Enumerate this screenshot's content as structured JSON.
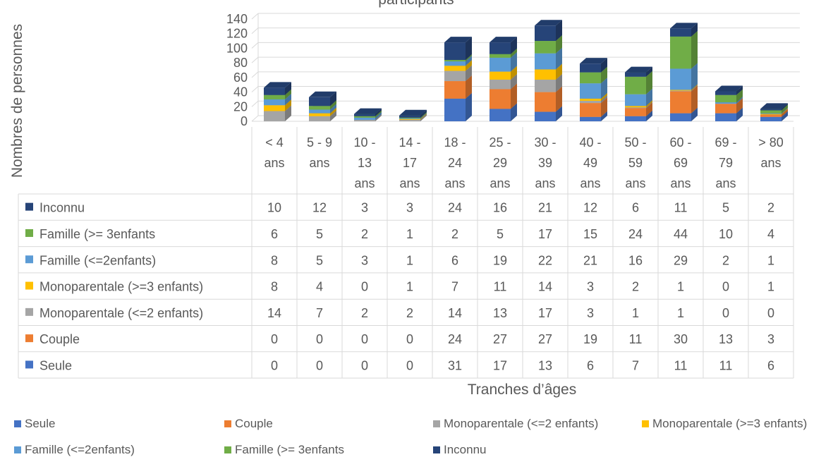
{
  "chart_data": {
    "type": "bar",
    "stacked": true,
    "three_d": true,
    "title": "participants",
    "xlabel": "Tranches d’âges",
    "ylabel": "Nombres de personnes",
    "ylim": [
      0,
      140
    ],
    "yticks": [
      "0",
      "20",
      "40",
      "60",
      "80",
      "100",
      "120",
      "140"
    ],
    "grid": true,
    "data_table": true,
    "legend_position": "bottom",
    "categories": [
      [
        "< 4",
        "ans"
      ],
      [
        "5 - 9",
        "ans"
      ],
      [
        "10 -",
        "13",
        "ans"
      ],
      [
        "14 -",
        "17",
        "ans"
      ],
      [
        "18 -",
        "24",
        "ans"
      ],
      [
        "25 -",
        "29",
        "ans"
      ],
      [
        "30 -",
        "39",
        "ans"
      ],
      [
        "40 -",
        "49",
        "ans"
      ],
      [
        "50 -",
        "59",
        "ans"
      ],
      [
        "60 -",
        "69",
        "ans"
      ],
      [
        "69 -",
        "79",
        "ans"
      ],
      [
        "> 80",
        "ans"
      ]
    ],
    "series": [
      {
        "name": "Seule",
        "color": "#4472C4",
        "values": [
          0,
          0,
          0,
          0,
          31,
          17,
          13,
          6,
          7,
          11,
          11,
          6
        ]
      },
      {
        "name": "Couple",
        "color": "#ED7D31",
        "values": [
          0,
          0,
          0,
          0,
          24,
          27,
          27,
          19,
          11,
          30,
          13,
          3
        ]
      },
      {
        "name": "Monoparentale (<=2 enfants)",
        "color": "#A5A5A5",
        "values": [
          14,
          7,
          2,
          2,
          14,
          13,
          17,
          3,
          1,
          1,
          0,
          0
        ]
      },
      {
        "name": "Monoparentale (>=3 enfants)",
        "color": "#FFC000",
        "values": [
          8,
          4,
          0,
          1,
          7,
          11,
          14,
          3,
          2,
          1,
          0,
          1
        ]
      },
      {
        "name": "Famille (<=2enfants)",
        "color": "#5B9BD5",
        "values": [
          8,
          5,
          3,
          1,
          6,
          19,
          22,
          21,
          16,
          29,
          2,
          1
        ]
      },
      {
        "name": "Famille (>= 3enfants",
        "color": "#70AD47",
        "values": [
          6,
          5,
          2,
          1,
          2,
          5,
          17,
          15,
          24,
          44,
          10,
          4
        ]
      },
      {
        "name": "Inconnu",
        "color": "#264478",
        "values": [
          10,
          12,
          3,
          3,
          24,
          16,
          21,
          12,
          6,
          11,
          5,
          2
        ]
      }
    ]
  }
}
